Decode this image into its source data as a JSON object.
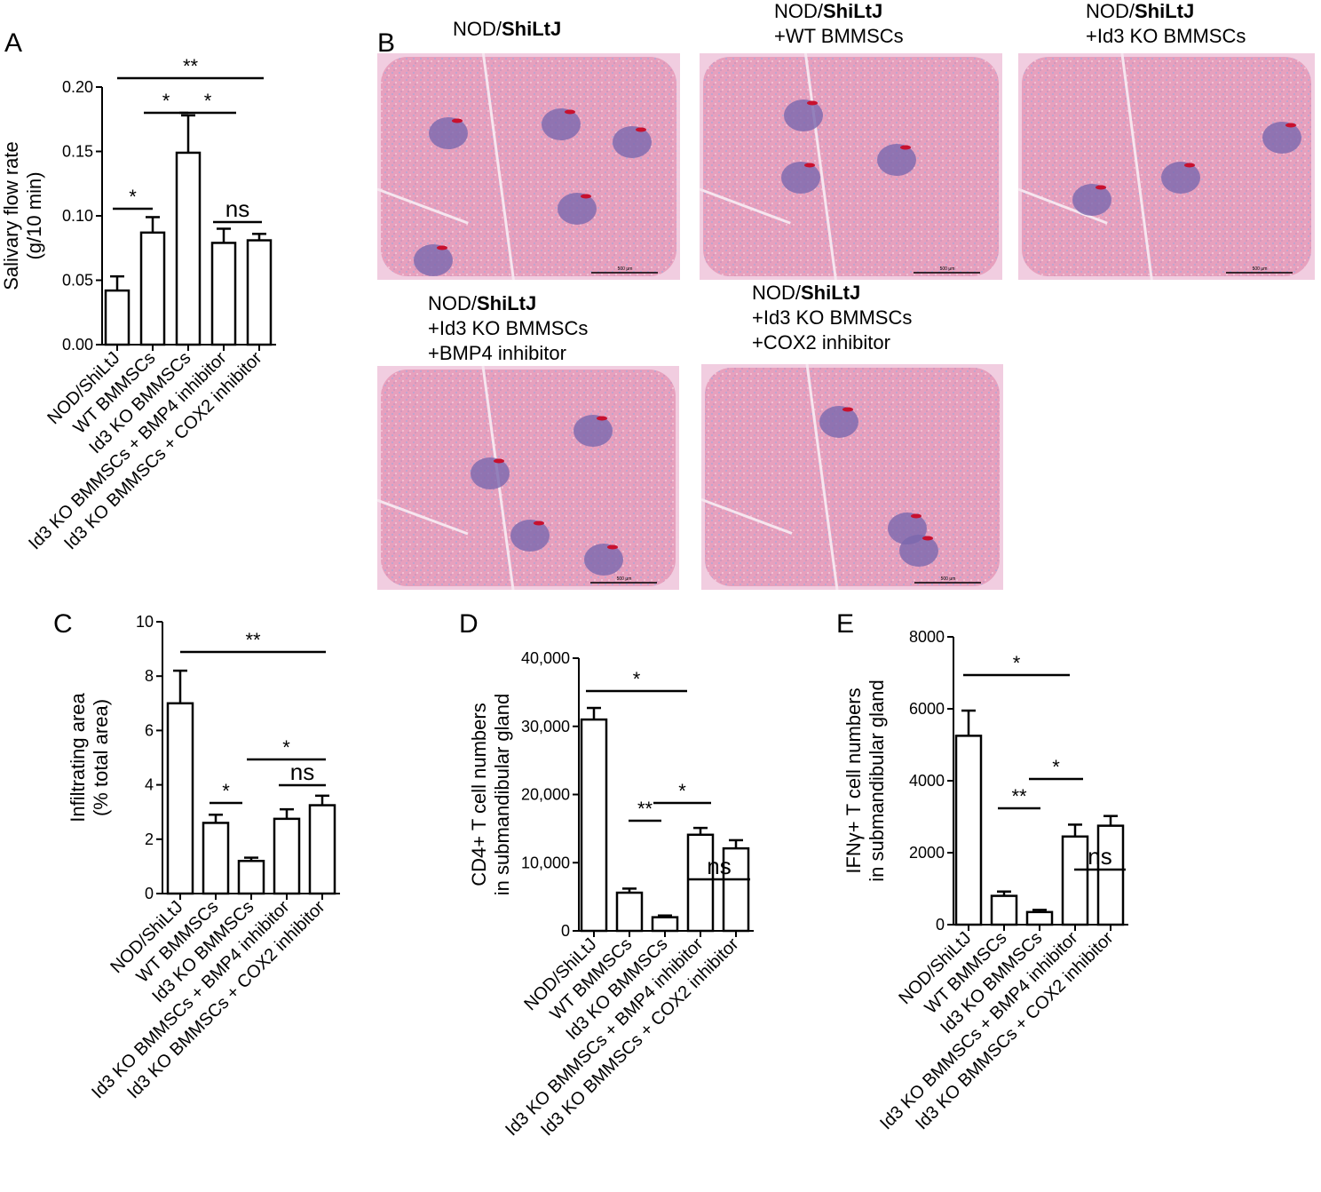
{
  "panels": {
    "A": "A",
    "B": "B",
    "C": "C",
    "D": "D",
    "E": "E"
  },
  "micrographs": [
    {
      "line1_prefix": "NOD/",
      "line1_bold": "ShiLtJ",
      "line2": "",
      "line3": "",
      "scale_label": "500 μm"
    },
    {
      "line1_prefix": "NOD/",
      "line1_bold": "ShiLtJ",
      "line2": "+WT BMMSCs",
      "line3": "",
      "scale_label": "500 μm"
    },
    {
      "line1_prefix": "NOD/",
      "line1_bold": "ShiLtJ",
      "line2": "+Id3 KO BMMSCs",
      "line3": "",
      "scale_label": "500 μm"
    },
    {
      "line1_prefix": "NOD/",
      "line1_bold": "ShiLtJ",
      "line2": "+Id3 KO BMMSCs",
      "line3": "+BMP4 inhibitor",
      "scale_label": "500 μm"
    },
    {
      "line1_prefix": "NOD/",
      "line1_bold": "ShiLtJ",
      "line2": "+Id3 KO BMMSCs",
      "line3": "+COX2 inhibitor",
      "scale_label": "500 μm"
    }
  ],
  "colors": {
    "tissue_pink": "#e7a0bd",
    "tissue_light": "#f1cde0",
    "infiltrate_purple": "#7a68ae",
    "vessel_red": "#c8102e",
    "bar_fill": "#ffffff",
    "bar_stroke": "#000000"
  },
  "chart_data": [
    {
      "panel": "A",
      "type": "bar",
      "ylabel_line1": "Salivary flow rate",
      "ylabel_line2": "(g/10 min)",
      "categories": [
        "NOD/ShiLtJ",
        "WT BMMSCs",
        "Id3 KO BMMSCs",
        "Id3 KO BMMSCs + BMP4 inhibitor",
        "Id3 KO BMMSCs + COX2 inhibitor"
      ],
      "values": [
        0.042,
        0.087,
        0.149,
        0.079,
        0.081
      ],
      "errors": [
        0.011,
        0.012,
        0.029,
        0.011,
        0.005
      ],
      "ylim": [
        0,
        0.2
      ],
      "yticks": [
        "0.00",
        "0.05",
        "0.10",
        "0.15",
        "0.20"
      ],
      "significance": [
        {
          "from": 0,
          "to": 4,
          "label": "**"
        },
        {
          "from": 1,
          "to": 2,
          "label": "*"
        },
        {
          "from": 2,
          "to": 3,
          "label": "*"
        },
        {
          "from": 0,
          "to": 1,
          "label": "*"
        },
        {
          "from": 3,
          "to": 4,
          "label": "ns"
        }
      ]
    },
    {
      "panel": "C",
      "type": "bar",
      "ylabel_line1": "Infiltrating area",
      "ylabel_line2": "(% total area)",
      "categories": [
        "NOD/ShiLtJ",
        "WT BMMSCs",
        "Id3 KO BMMSCs",
        "Id3 KO BMMSCs + BMP4 inhibitor",
        "Id3 KO BMMSCs + COX2 inhibitor"
      ],
      "values": [
        7.0,
        2.6,
        1.2,
        2.75,
        3.25
      ],
      "errors": [
        1.2,
        0.3,
        0.12,
        0.35,
        0.35
      ],
      "ylim": [
        0,
        10
      ],
      "yticks": [
        "0",
        "2",
        "4",
        "6",
        "8",
        "10"
      ],
      "significance": [
        {
          "from": 0,
          "to": 4,
          "label": "**"
        },
        {
          "from": 2,
          "to": 4,
          "label": "*"
        },
        {
          "from": 1,
          "to": 2,
          "label": "*"
        },
        {
          "from": 3,
          "to": 4,
          "label": "ns"
        }
      ]
    },
    {
      "panel": "D",
      "type": "bar",
      "ylabel_line1": "CD4+ T cell numbers",
      "ylabel_line2": "in submandibular gland",
      "categories": [
        "NOD/ShiLtJ",
        "WT BMMSCs",
        "Id3 KO BMMSCs",
        "Id3 KO BMMSCs + BMP4 inhibitor",
        "Id3 KO BMMSCs + COX2 inhibitor"
      ],
      "values": [
        31000,
        5600,
        2000,
        14100,
        12100
      ],
      "errors": [
        1700,
        600,
        250,
        1000,
        1200
      ],
      "ylim": [
        0,
        40000
      ],
      "yticks": [
        "0",
        "10,000",
        "20,000",
        "30,000",
        "40,000"
      ],
      "significance": [
        {
          "from": 0,
          "to": 2,
          "label": "*"
        },
        {
          "from": 2,
          "to": 3,
          "label": "*"
        },
        {
          "from": 3,
          "to": 4,
          "label": "ns"
        },
        {
          "from": 1,
          "to": 2,
          "label": "**"
        }
      ]
    },
    {
      "panel": "E",
      "type": "bar",
      "ylabel_line1": "IFNγ+ T cell numbers",
      "ylabel_line2": "in submandibular gland",
      "categories": [
        "NOD/ShiLtJ",
        "WT BMMSCs",
        "Id3 KO BMMSCs",
        "Id3 KO BMMSCs + BMP4 inhibitor",
        "Id3 KO BMMSCs + COX2 inhibitor"
      ],
      "values": [
        5250,
        800,
        350,
        2450,
        2750
      ],
      "errors": [
        700,
        120,
        60,
        330,
        270
      ],
      "ylim": [
        0,
        8000
      ],
      "yticks": [
        "0",
        "2000",
        "4000",
        "6000",
        "8000"
      ],
      "significance": [
        {
          "from": 0,
          "to": 2,
          "label": "*"
        },
        {
          "from": 2,
          "to": 3,
          "label": "*"
        },
        {
          "from": 3,
          "to": 4,
          "label": "ns"
        },
        {
          "from": 1,
          "to": 2,
          "label": "**"
        }
      ]
    }
  ]
}
